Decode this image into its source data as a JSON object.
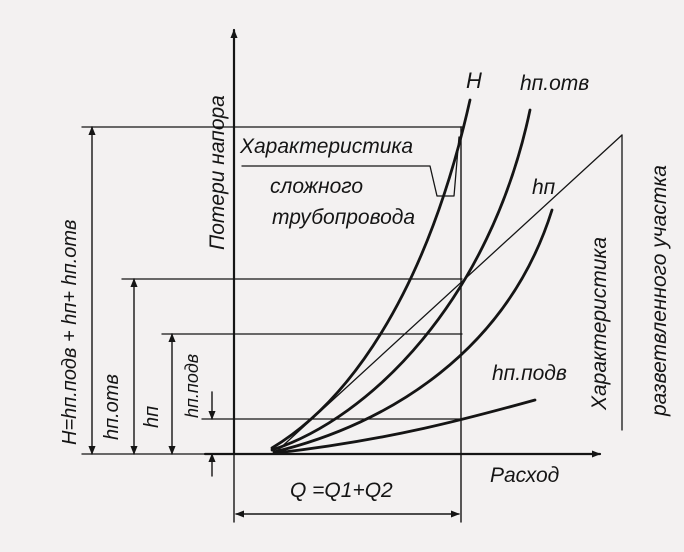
{
  "axes": {
    "y_label": "Потери напора",
    "x_label": "Расход"
  },
  "curves": {
    "H": "H",
    "h_otv": "hп.отв",
    "h_p": "hп",
    "h_podv": "hп.подв"
  },
  "annotations": {
    "complex_char_line1": "Характеристика",
    "complex_char_line2": "сложного",
    "complex_char_line3": "трубопровода",
    "branched_char_line1": "Характеристика",
    "branched_char_line2": "разветвленного участка"
  },
  "dimensions": {
    "H_total": "H=hп.подв + hп+ hп.отв",
    "h_otv": "hп.отв",
    "h_p": "hп",
    "h_podv": "hп.подв",
    "Q": "Q =Q1+Q2"
  },
  "colors": {
    "ink": "#151515",
    "paper": "#f3f1f1"
  }
}
